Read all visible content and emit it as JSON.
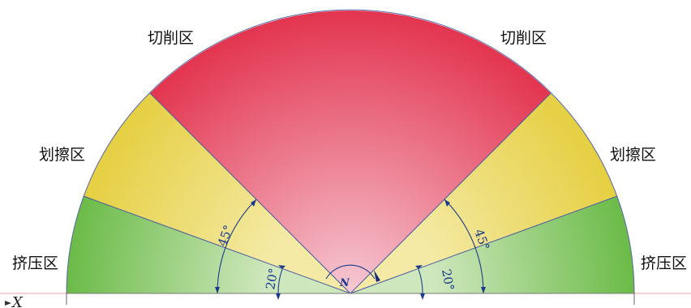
{
  "zones": {
    "cutting": "切削区",
    "scratching": "划擦区",
    "extrusion": "挤压区"
  },
  "angles": {
    "cutting_half_angle": "45°",
    "extrusion_angle": "20°"
  },
  "axis": {
    "x_label": "X"
  },
  "point": {
    "label": "N"
  },
  "colors": {
    "cutting": "#e23553",
    "cutting_light": "#f0b3c3",
    "scratching": "#e9d24d",
    "scratching_light": "#f2e8a0",
    "extrusion": "#6cbd4a",
    "extrusion_light": "#b9dca2",
    "annotation": "#1a3a8a"
  }
}
